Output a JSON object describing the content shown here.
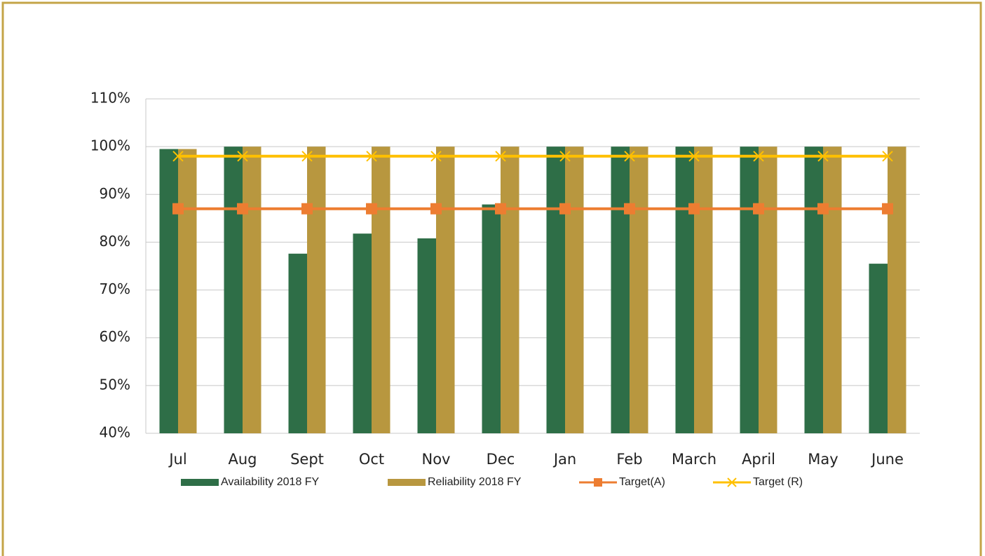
{
  "chart_data": {
    "type": "bar",
    "categories": [
      "Jul",
      "Aug",
      "Sept",
      "Oct",
      "Nov",
      "Dec",
      "Jan",
      "Feb",
      "March",
      "April",
      "May",
      "June"
    ],
    "series": [
      {
        "name": "Availability 2018 FY",
        "type": "bar",
        "color": "#2e6e47",
        "values": [
          99.5,
          100,
          77.6,
          81.8,
          80.8,
          87.9,
          100,
          100,
          100,
          100,
          100,
          75.5
        ]
      },
      {
        "name": "Reliability 2018 FY",
        "type": "bar",
        "color": "#b8973f",
        "values": [
          99.5,
          100,
          100,
          100,
          100,
          100,
          100,
          100,
          100,
          100,
          100,
          100
        ]
      },
      {
        "name": "Target(A)",
        "type": "line",
        "marker": "square",
        "color": "#ed7d31",
        "values": [
          87,
          87,
          87,
          87,
          87,
          87,
          87,
          87,
          87,
          87,
          87,
          87
        ]
      },
      {
        "name": "Target (R)",
        "type": "line",
        "marker": "x",
        "color": "#ffc000",
        "values": [
          98,
          98,
          98,
          98,
          98,
          98,
          98,
          98,
          98,
          98,
          98,
          98
        ]
      }
    ],
    "ylim": [
      40,
      110
    ],
    "yticks": [
      {
        "value": 40,
        "label": "40%"
      },
      {
        "value": 50,
        "label": "50%"
      },
      {
        "value": 60,
        "label": "60%"
      },
      {
        "value": 70,
        "label": "70%"
      },
      {
        "value": 80,
        "label": "80%"
      },
      {
        "value": 90,
        "label": "90%"
      },
      {
        "value": 100,
        "label": "100%"
      },
      {
        "value": 110,
        "label": "110%"
      }
    ],
    "grid": true,
    "legend": "bottom"
  }
}
